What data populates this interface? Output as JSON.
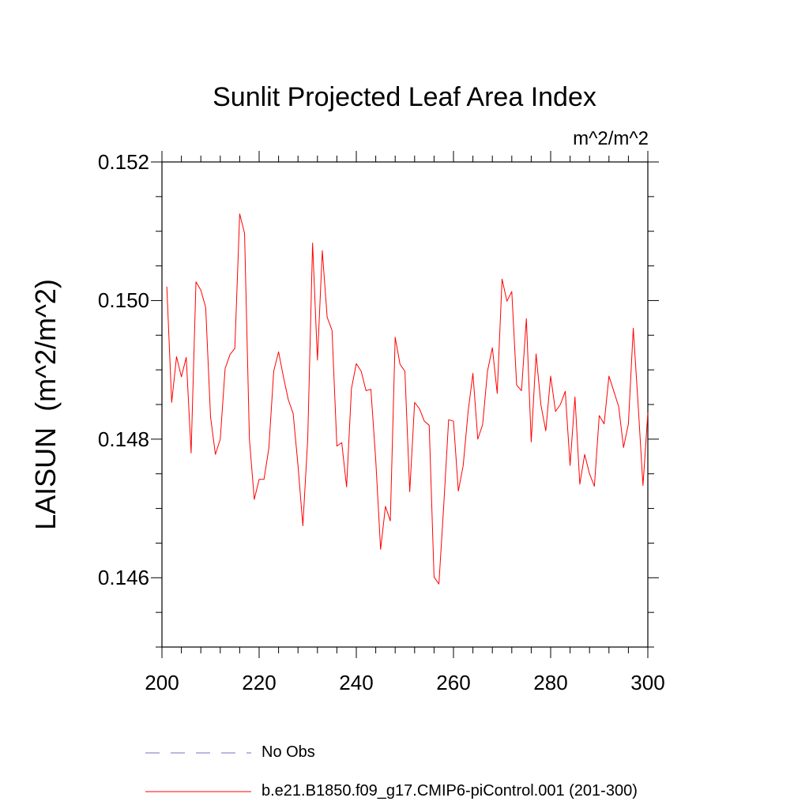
{
  "chart_data": {
    "type": "line",
    "title": "Sunlit Projected Leaf Area Index",
    "units_label": "m^2/m^2",
    "xlabel": "",
    "ylabel": "LAISUN  (m^2/m^2)",
    "xlim": [
      200,
      300
    ],
    "ylim": [
      0.145,
      0.152
    ],
    "x_ticks": [
      200,
      220,
      240,
      260,
      280,
      300
    ],
    "x_tick_labels": [
      "200",
      "220",
      "240",
      "260",
      "280",
      "300"
    ],
    "y_ticks": [
      0.146,
      0.148,
      0.15,
      0.152
    ],
    "y_tick_labels": [
      "0.146",
      "0.148",
      "0.150",
      "0.152"
    ],
    "y_minor_step": 0.0005,
    "x_minor_step": 4,
    "legend_position": "bottom",
    "series": [
      {
        "name": "No Obs",
        "color": "#7a6fc0",
        "style": "dashed",
        "x": [],
        "values": []
      },
      {
        "name": "b.e21.B1850.f09_g17.CMIP6-piControl.001 (201-300)",
        "color": "#ff0000",
        "style": "solid",
        "x": [
          201,
          202,
          203,
          204,
          205,
          206,
          207,
          208,
          209,
          210,
          211,
          212,
          213,
          214,
          215,
          216,
          217,
          218,
          219,
          220,
          221,
          222,
          223,
          224,
          225,
          226,
          227,
          228,
          229,
          230,
          231,
          232,
          233,
          234,
          235,
          236,
          237,
          238,
          239,
          240,
          241,
          242,
          243,
          244,
          245,
          246,
          247,
          248,
          249,
          250,
          251,
          252,
          253,
          254,
          255,
          256,
          257,
          258,
          259,
          260,
          261,
          262,
          263,
          264,
          265,
          266,
          267,
          268,
          269,
          270,
          271,
          272,
          273,
          274,
          275,
          276,
          277,
          278,
          279,
          280,
          281,
          282,
          283,
          284,
          285,
          286,
          287,
          288,
          289,
          290,
          291,
          292,
          293,
          294,
          295,
          296,
          297,
          298,
          299,
          300
        ],
        "values": [
          0.1502,
          0.14853,
          0.14919,
          0.1489,
          0.14918,
          0.1478,
          0.15027,
          0.15015,
          0.1499,
          0.14832,
          0.14778,
          0.148,
          0.14902,
          0.14922,
          0.14931,
          0.15125,
          0.15097,
          0.148,
          0.14713,
          0.14742,
          0.14742,
          0.14787,
          0.14898,
          0.14926,
          0.1489,
          0.14857,
          0.14837,
          0.14762,
          0.14675,
          0.148,
          0.15083,
          0.14914,
          0.15072,
          0.14976,
          0.14957,
          0.1479,
          0.14795,
          0.14731,
          0.14873,
          0.14909,
          0.14898,
          0.1487,
          0.14872,
          0.1477,
          0.14641,
          0.14703,
          0.14682,
          0.14947,
          0.14908,
          0.14898,
          0.14724,
          0.14853,
          0.14844,
          0.14826,
          0.1482,
          0.14601,
          0.14591,
          0.14705,
          0.14828,
          0.14826,
          0.14725,
          0.14762,
          0.14839,
          0.14895,
          0.148,
          0.14821,
          0.14898,
          0.14932,
          0.14866,
          0.15031,
          0.14999,
          0.15013,
          0.14878,
          0.1487,
          0.14974,
          0.14796,
          0.14923,
          0.14849,
          0.14812,
          0.14891,
          0.1484,
          0.1485,
          0.14869,
          0.14762,
          0.14861,
          0.14735,
          0.14778,
          0.1475,
          0.14732,
          0.14834,
          0.14822,
          0.14891,
          0.14869,
          0.14847,
          0.14788,
          0.14822,
          0.1496,
          0.1485,
          0.14733,
          0.14838
        ]
      }
    ]
  }
}
